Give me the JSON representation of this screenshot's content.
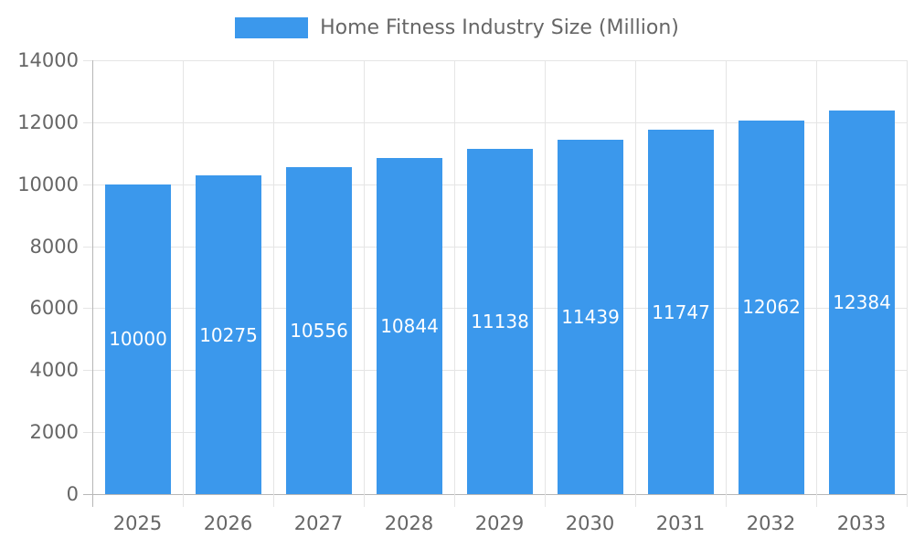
{
  "chart_data": {
    "type": "bar",
    "title": "Home Fitness Industry Size (Million)",
    "legend": {
      "label": "Home Fitness Industry Size (Million)",
      "position": "top"
    },
    "categories": [
      "2025",
      "2026",
      "2027",
      "2028",
      "2029",
      "2030",
      "2031",
      "2032",
      "2033"
    ],
    "series": [
      {
        "name": "Home Fitness Industry Size (Million)",
        "values": [
          10000,
          10275,
          10556,
          10844,
          11138,
          11439,
          11747,
          12062,
          12384
        ]
      }
    ],
    "xlabel": "",
    "ylabel": "",
    "ylim": [
      0,
      14000
    ],
    "yticks": [
      0,
      2000,
      4000,
      6000,
      8000,
      10000,
      12000,
      14000
    ],
    "grid": true,
    "value_labels_inside_bars": true,
    "colors": {
      "bar": "#3B98EC",
      "grid_line": "#e5e5e5",
      "axis_line": "#b7b7b7",
      "tick_text": "#666666",
      "value_label": "#ffffff",
      "legend_text": "#666666",
      "background": "#ffffff"
    }
  }
}
